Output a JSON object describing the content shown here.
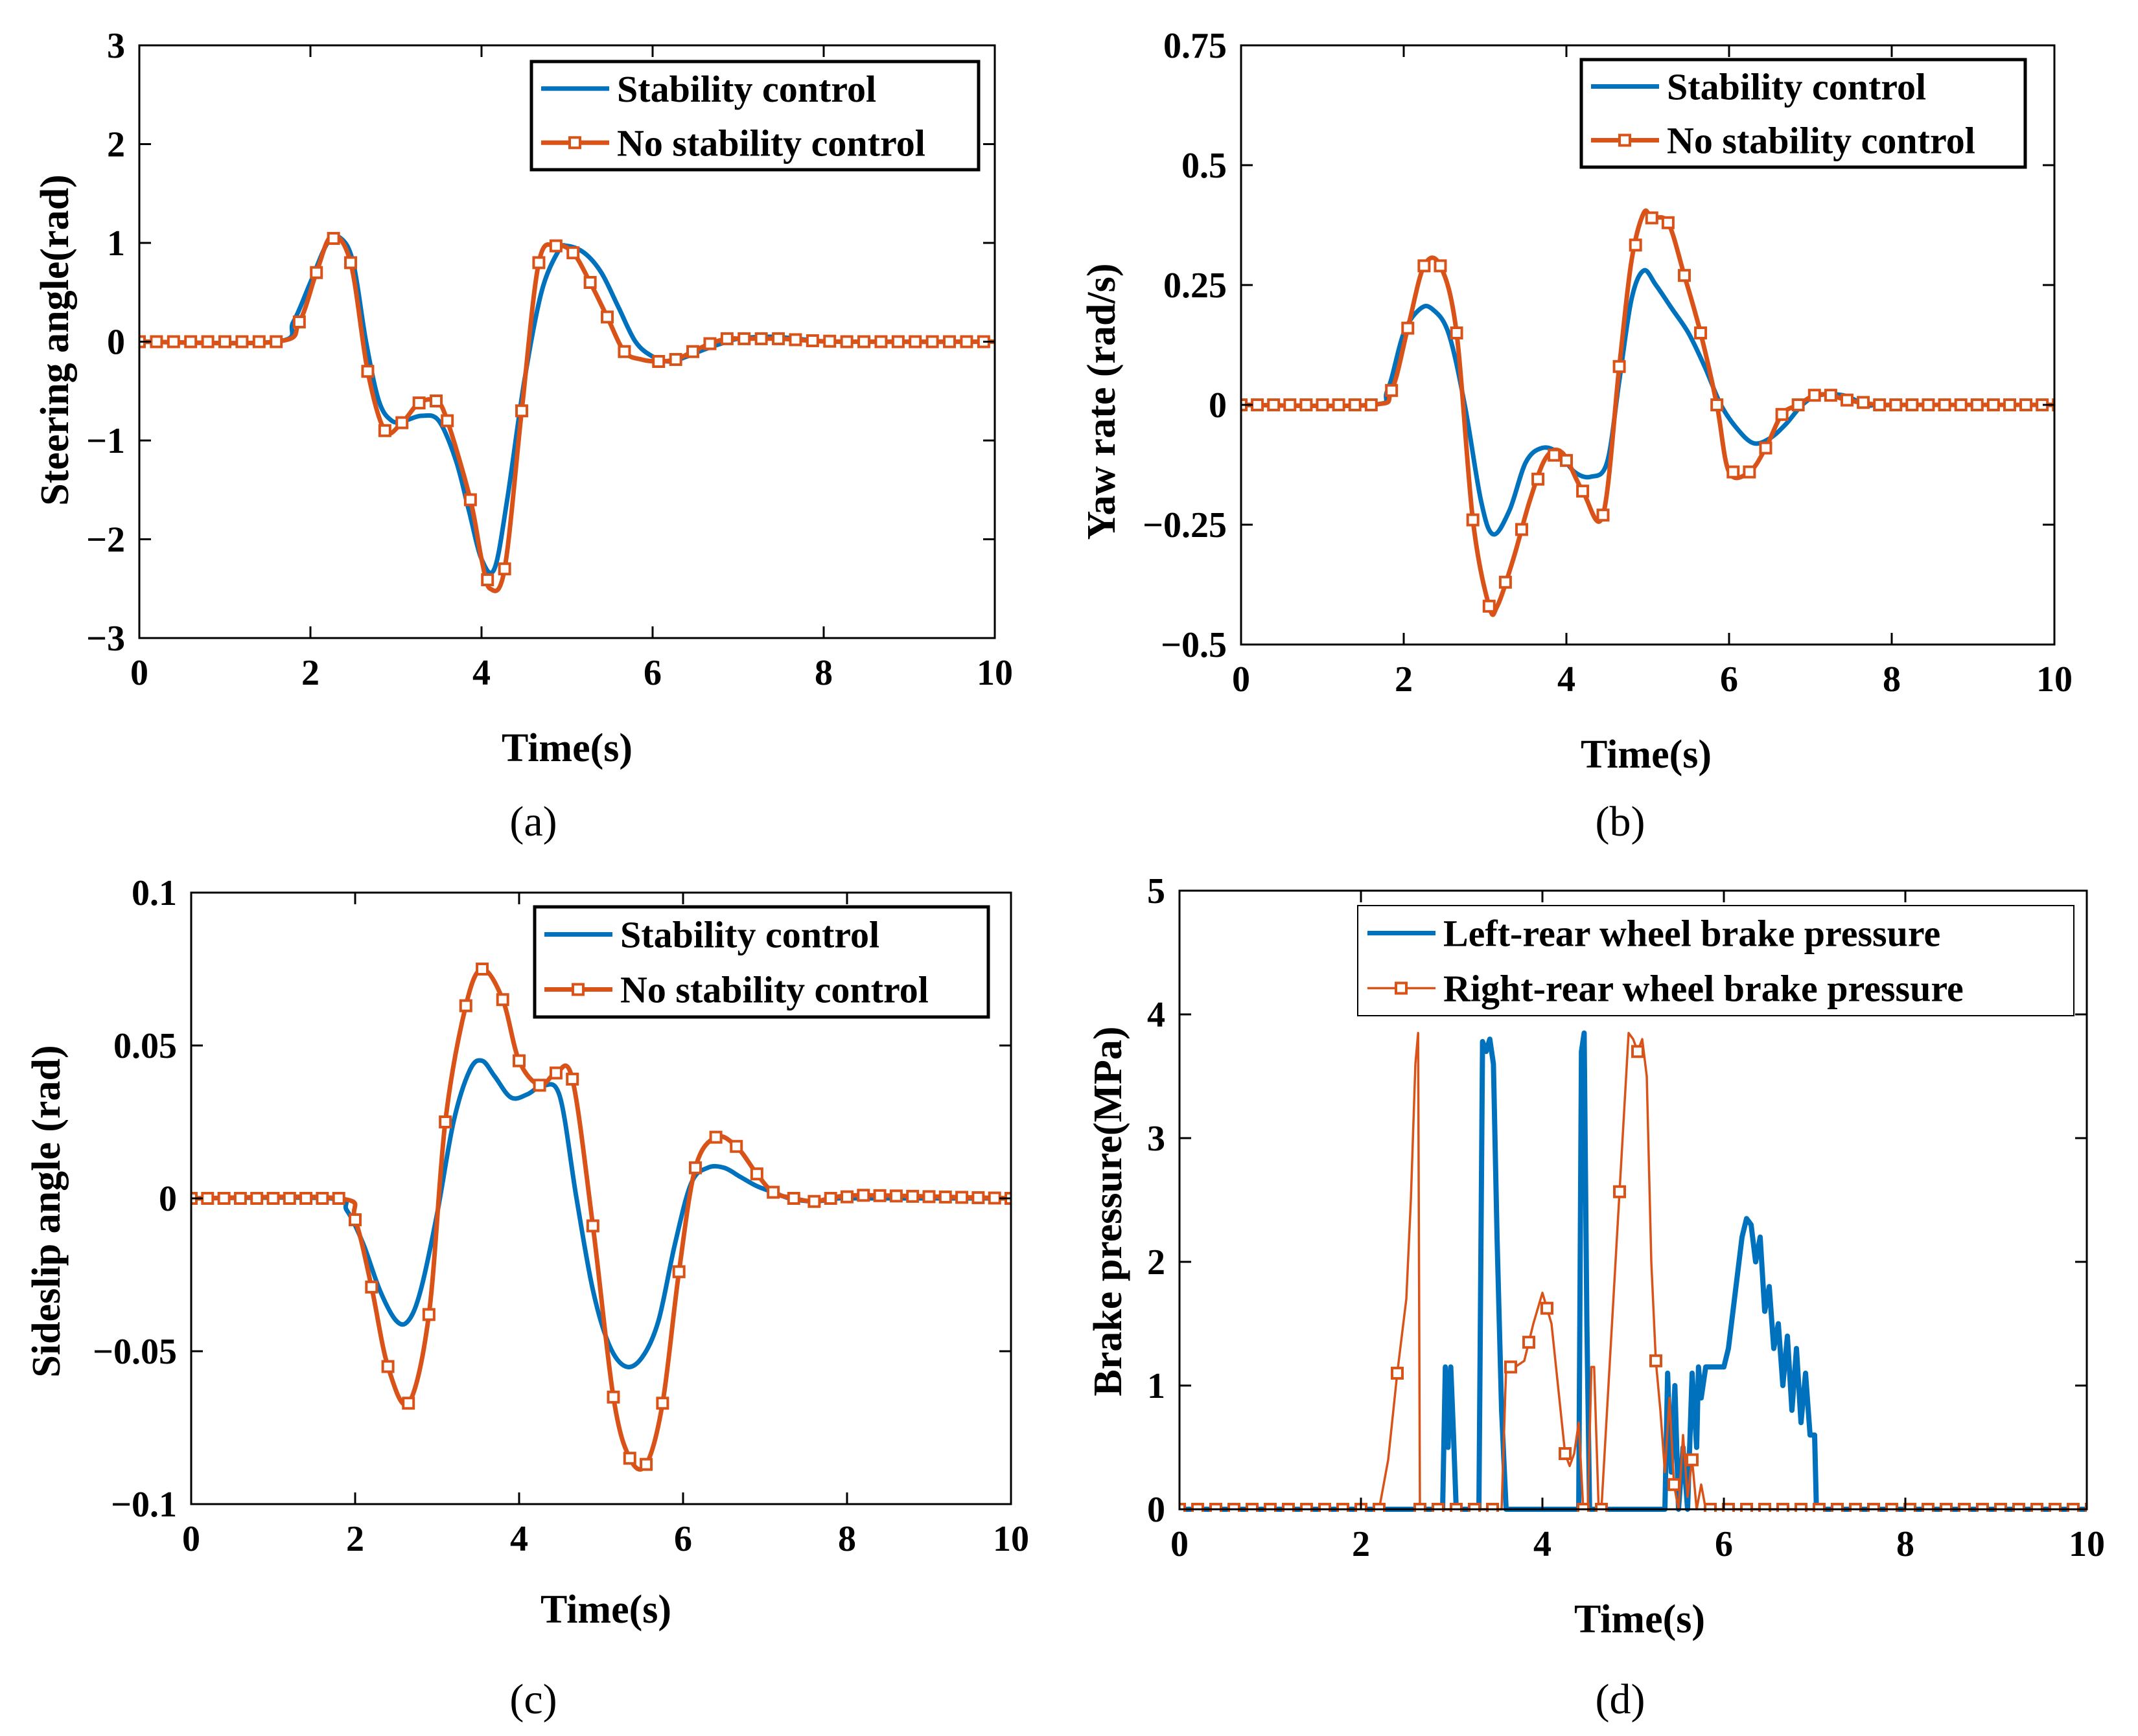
{
  "colors": {
    "stability": "#0072BD",
    "no_stability": "#D95319",
    "axis": "#000000"
  },
  "chart_data": [
    {
      "id": "a",
      "type": "line",
      "panel_label": "(a)",
      "xlabel": "Time(s)",
      "ylabel": "Steering angle(rad)",
      "xlim": [
        0,
        10
      ],
      "ylim": [
        -3,
        3
      ],
      "xticks": [
        0,
        2,
        4,
        6,
        8,
        10
      ],
      "yticks": [
        -3,
        -2,
        -1,
        0,
        1,
        2,
        3
      ],
      "ytick_labels": [
        "−3",
        "−2",
        "−1",
        "0",
        "1",
        "2",
        "3"
      ],
      "legend": [
        "Stability control",
        "No stability control"
      ],
      "series": [
        {
          "name": "Stability control",
          "style": "line",
          "x": [
            0,
            1.6,
            1.8,
            2.0,
            2.2,
            2.35,
            2.5,
            2.65,
            2.8,
            2.95,
            3.1,
            3.3,
            3.5,
            3.7,
            3.85,
            4.0,
            4.15,
            4.3,
            4.5,
            4.7,
            4.9,
            5.0,
            5.2,
            5.4,
            5.6,
            5.8,
            6.0,
            6.2,
            6.4,
            6.6,
            6.8,
            7.0,
            7.4,
            7.8,
            8.2,
            10
          ],
          "y": [
            0,
            0,
            0.2,
            0.6,
            1.0,
            1.05,
            0.8,
            0.0,
            -0.6,
            -0.8,
            -0.8,
            -0.75,
            -0.8,
            -1.2,
            -1.7,
            -2.2,
            -2.3,
            -1.6,
            -0.4,
            0.5,
            0.92,
            0.97,
            0.9,
            0.7,
            0.35,
            0.0,
            -0.15,
            -0.2,
            -0.15,
            -0.08,
            -0.02,
            0.03,
            0.05,
            0.02,
            0,
            0
          ]
        },
        {
          "name": "No stability control",
          "style": "line-square",
          "markers_x": [
            0,
            0.2,
            0.4,
            0.6,
            0.8,
            1.0,
            1.2,
            1.4,
            1.6,
            1.87,
            2.07,
            2.27,
            2.47,
            2.67,
            2.87,
            3.07,
            3.27,
            3.47,
            3.6,
            3.87,
            4.07,
            4.27,
            4.47,
            4.67,
            4.87,
            5.07,
            5.27,
            5.47,
            5.67,
            6.07,
            6.27,
            6.47,
            6.67,
            6.87,
            7.07,
            7.27,
            7.47,
            7.67,
            7.87,
            8.07,
            8.27,
            8.47,
            8.67,
            8.87,
            9.07,
            9.27,
            9.47,
            9.67,
            9.87,
            10.07
          ],
          "x": [
            0,
            1.6,
            1.87,
            2.07,
            2.25,
            2.47,
            2.67,
            2.87,
            3.07,
            3.27,
            3.47,
            3.6,
            3.87,
            4.0,
            4.1,
            4.27,
            4.47,
            4.67,
            4.87,
            5.07,
            5.27,
            5.47,
            5.67,
            5.87,
            6.07,
            6.27,
            6.47,
            6.67,
            6.87,
            7.07,
            7.47,
            7.87,
            8.27,
            10.07
          ],
          "y": [
            0,
            0,
            0.2,
            0.7,
            1.07,
            0.8,
            -0.3,
            -0.9,
            -0.82,
            -0.62,
            -0.6,
            -0.8,
            -1.6,
            -2.2,
            -2.5,
            -2.3,
            -0.7,
            0.8,
            0.97,
            0.9,
            0.6,
            0.25,
            -0.1,
            -0.18,
            -0.2,
            -0.18,
            -0.1,
            -0.02,
            0.03,
            0.03,
            0.03,
            0.01,
            0,
            0
          ]
        }
      ]
    },
    {
      "id": "b",
      "type": "line",
      "panel_label": "(b)",
      "xlabel": "Time(s)",
      "ylabel": "Yaw rate (rad/s)",
      "xlim": [
        0,
        10
      ],
      "ylim": [
        -0.5,
        0.75
      ],
      "xticks": [
        0,
        2,
        4,
        6,
        8,
        10
      ],
      "yticks": [
        -0.5,
        -0.25,
        0,
        0.25,
        0.5,
        0.75
      ],
      "ytick_labels": [
        "−0.5",
        "−0.25",
        "0",
        "0.25",
        "0.5",
        "0.75"
      ],
      "legend": [
        "Stability control",
        "No stability control"
      ],
      "series": [
        {
          "name": "Stability control",
          "style": "line",
          "x": [
            0,
            1.6,
            1.8,
            2.0,
            2.2,
            2.35,
            2.55,
            2.75,
            2.95,
            3.1,
            3.3,
            3.5,
            3.7,
            3.9,
            4.1,
            4.3,
            4.5,
            4.65,
            4.8,
            4.95,
            5.1,
            5.3,
            5.5,
            5.7,
            5.9,
            6.1,
            6.3,
            6.5,
            6.7,
            6.9,
            7.1,
            7.4,
            7.7,
            8.0,
            10
          ],
          "y": [
            0,
            0,
            0.03,
            0.15,
            0.2,
            0.2,
            0.15,
            0.0,
            -0.2,
            -0.27,
            -0.22,
            -0.12,
            -0.09,
            -0.1,
            -0.14,
            -0.15,
            -0.12,
            0.05,
            0.22,
            0.28,
            0.25,
            0.2,
            0.15,
            0.08,
            0.0,
            -0.05,
            -0.08,
            -0.07,
            -0.04,
            0.0,
            0.02,
            0.02,
            0.0,
            0,
            0
          ]
        },
        {
          "name": "No stability control",
          "style": "line-square",
          "markers_x": [
            0,
            0.2,
            0.4,
            0.6,
            0.8,
            1.0,
            1.2,
            1.4,
            1.6,
            1.85,
            2.05,
            2.25,
            2.45,
            2.65,
            2.85,
            3.05,
            3.25,
            3.45,
            3.65,
            3.85,
            4.0,
            4.2,
            4.45,
            4.65,
            4.85,
            5.05,
            5.25,
            5.45,
            5.65,
            5.85,
            6.05,
            6.25,
            6.45,
            6.65,
            6.85,
            7.05,
            7.25,
            7.45,
            7.65,
            7.85,
            8.05,
            8.25,
            8.45,
            8.65,
            8.85,
            9.05,
            9.25,
            9.45,
            9.65,
            9.85,
            10.05
          ],
          "x": [
            0,
            1.6,
            1.85,
            2.05,
            2.25,
            2.45,
            2.65,
            2.85,
            3.05,
            3.15,
            3.35,
            3.55,
            3.75,
            3.95,
            4.2,
            4.45,
            4.65,
            4.8,
            4.95,
            5.05,
            5.25,
            5.45,
            5.65,
            5.85,
            6.0,
            6.25,
            6.45,
            6.65,
            6.85,
            7.05,
            7.25,
            7.45,
            7.85,
            8.25,
            10.05
          ],
          "y": [
            0,
            0,
            0.03,
            0.16,
            0.29,
            0.29,
            0.15,
            -0.24,
            -0.42,
            -0.42,
            -0.32,
            -0.2,
            -0.11,
            -0.1,
            -0.18,
            -0.23,
            0.08,
            0.3,
            0.4,
            0.39,
            0.38,
            0.27,
            0.15,
            0.0,
            -0.14,
            -0.14,
            -0.09,
            -0.02,
            0.0,
            0.02,
            0.02,
            0.01,
            0.0,
            0,
            0
          ]
        }
      ]
    },
    {
      "id": "c",
      "type": "line",
      "panel_label": "(c)",
      "xlabel": "Time(s)",
      "ylabel": "Sideslip angle (rad)",
      "xlim": [
        0,
        10
      ],
      "ylim": [
        -0.1,
        0.1
      ],
      "xticks": [
        0,
        2,
        4,
        6,
        8,
        10
      ],
      "yticks": [
        -0.1,
        -0.05,
        0,
        0.05,
        0.1
      ],
      "ytick_labels": [
        "−0.1",
        "−0.05",
        "0",
        "0.05",
        "0.1"
      ],
      "legend": [
        "Stability control",
        "No stability control"
      ],
      "series": [
        {
          "name": "Stability control",
          "style": "line",
          "x": [
            0,
            1.7,
            1.9,
            2.1,
            2.3,
            2.5,
            2.65,
            2.8,
            3.0,
            3.2,
            3.4,
            3.55,
            3.7,
            3.9,
            4.1,
            4.3,
            4.5,
            4.7,
            4.9,
            5.1,
            5.3,
            5.5,
            5.7,
            5.9,
            6.1,
            6.3,
            6.5,
            6.7,
            6.9,
            7.1,
            7.3,
            7.6,
            7.9,
            8.2,
            10
          ],
          "y": [
            0,
            0,
            -0.004,
            -0.015,
            -0.03,
            -0.04,
            -0.04,
            -0.03,
            -0.005,
            0.025,
            0.042,
            0.045,
            0.04,
            0.033,
            0.034,
            0.037,
            0.033,
            0.0,
            -0.03,
            -0.048,
            -0.055,
            -0.052,
            -0.04,
            -0.015,
            0.005,
            0.01,
            0.01,
            0.007,
            0.004,
            0.002,
            0.0,
            -0.001,
            0.0,
            0,
            0
          ]
        },
        {
          "name": "No stability control",
          "style": "line-square",
          "markers_x": [
            0,
            0.2,
            0.4,
            0.6,
            0.8,
            1.0,
            1.2,
            1.4,
            1.6,
            1.8,
            2.0,
            2.2,
            2.4,
            2.65,
            2.9,
            3.1,
            3.35,
            3.55,
            3.8,
            4.0,
            4.25,
            4.45,
            4.65,
            4.9,
            5.15,
            5.35,
            5.55,
            5.75,
            5.95,
            6.15,
            6.4,
            6.65,
            6.9,
            7.1,
            7.35,
            7.6,
            7.8,
            8.0,
            8.2,
            8.4,
            8.6,
            8.8,
            9.0,
            9.2,
            9.4,
            9.6,
            9.8,
            10.0
          ],
          "x": [
            0,
            1.8,
            2.0,
            2.2,
            2.4,
            2.65,
            2.9,
            3.1,
            3.35,
            3.55,
            3.8,
            4.0,
            4.25,
            4.45,
            4.65,
            4.9,
            5.15,
            5.35,
            5.55,
            5.75,
            5.95,
            6.15,
            6.4,
            6.65,
            6.9,
            7.1,
            7.35,
            7.6,
            7.8,
            8.2,
            10.0
          ],
          "y": [
            0,
            0,
            -0.007,
            -0.029,
            -0.055,
            -0.067,
            -0.038,
            0.025,
            0.063,
            0.075,
            0.065,
            0.045,
            0.037,
            0.041,
            0.039,
            -0.009,
            -0.065,
            -0.085,
            -0.087,
            -0.067,
            -0.024,
            0.01,
            0.02,
            0.017,
            0.008,
            0.002,
            0.0,
            -0.001,
            0.0,
            0.001,
            0.0
          ]
        }
      ]
    },
    {
      "id": "d",
      "type": "line",
      "panel_label": "(d)",
      "xlabel": "Time(s)",
      "ylabel": "Brake pressure(MPa)",
      "xlim": [
        0,
        10
      ],
      "ylim": [
        0,
        5
      ],
      "xticks": [
        0,
        2,
        4,
        6,
        8,
        10
      ],
      "yticks": [
        0,
        1,
        2,
        3,
        4,
        5
      ],
      "ytick_labels": [
        "0",
        "1",
        "2",
        "3",
        "4",
        "5"
      ],
      "legend": [
        "Left-rear wheel brake pressure",
        "Right-rear wheel brake pressure"
      ],
      "series": [
        {
          "name": "Left-rear wheel brake pressure",
          "style": "line-thick",
          "x": [
            0,
            2.9,
            2.93,
            2.96,
            2.99,
            3.02,
            3.05,
            3.3,
            3.34,
            3.38,
            3.42,
            3.46,
            3.5,
            3.55,
            3.6,
            4.4,
            4.43,
            4.46,
            4.49,
            4.52,
            5.35,
            5.38,
            5.42,
            5.46,
            5.5,
            5.55,
            5.6,
            5.65,
            5.7,
            5.72,
            5.75,
            5.8,
            5.85,
            5.9,
            5.95,
            6.0,
            6.05,
            6.1,
            6.15,
            6.2,
            6.25,
            6.3,
            6.35,
            6.4,
            6.45,
            6.5,
            6.55,
            6.6,
            6.65,
            6.7,
            6.75,
            6.8,
            6.85,
            6.9,
            6.95,
            7.0,
            7.02,
            10
          ],
          "y": [
            0,
            0,
            1.15,
            0.5,
            1.15,
            0.6,
            0,
            0,
            3.78,
            3.7,
            3.8,
            3.6,
            2.2,
            0.8,
            0,
            0,
            3.7,
            3.85,
            1.5,
            0,
            0,
            1.1,
            0.3,
            1.0,
            0,
            0.5,
            0,
            1.1,
            0.5,
            1.15,
            0.9,
            1.15,
            1.15,
            1.15,
            1.15,
            1.15,
            1.3,
            1.6,
            1.9,
            2.2,
            2.35,
            2.3,
            2.0,
            2.2,
            1.6,
            1.8,
            1.3,
            1.5,
            1.0,
            1.4,
            0.8,
            1.3,
            0.7,
            1.1,
            0.6,
            0.6,
            0,
            0
          ]
        },
        {
          "name": "Right-rear wheel brake pressure",
          "style": "thin-square",
          "markers_x": [
            0,
            0.2,
            0.4,
            0.6,
            0.8,
            1.0,
            1.2,
            1.4,
            1.6,
            1.8,
            2.0,
            2.2,
            2.4,
            2.65,
            2.85,
            3.05,
            3.25,
            3.45,
            3.65,
            3.85,
            4.05,
            4.25,
            4.45,
            4.65,
            4.85,
            5.05,
            5.25,
            5.45,
            5.65,
            5.85,
            6.05,
            6.25,
            6.45,
            6.65,
            6.85,
            7.05,
            7.25,
            7.45,
            7.65,
            7.85,
            8.05,
            8.25,
            8.45,
            8.65,
            8.85,
            9.05,
            9.25,
            9.45,
            9.65,
            9.85,
            10.05
          ],
          "x": [
            0,
            2.2,
            2.3,
            2.4,
            2.5,
            2.55,
            2.6,
            2.63,
            2.65,
            3.55,
            3.6,
            3.7,
            3.8,
            3.9,
            4.0,
            4.1,
            4.2,
            4.25,
            4.3,
            4.35,
            4.4,
            4.45,
            4.5,
            4.54,
            4.57,
            4.62,
            4.65,
            4.95,
            5.0,
            5.05,
            5.1,
            5.15,
            5.2,
            5.25,
            5.3,
            5.35,
            5.4,
            5.45,
            5.5,
            5.55,
            5.6,
            5.65,
            5.7,
            5.75,
            5.8,
            5.85,
            10.05
          ],
          "y": [
            0,
            0,
            0.4,
            1.1,
            1.7,
            2.5,
            3.6,
            3.85,
            0,
            0,
            1.15,
            1.15,
            1.2,
            1.5,
            1.75,
            1.5,
            0.8,
            0.45,
            0.35,
            0.45,
            0.7,
            0.0,
            0.0,
            1.15,
            1.15,
            0,
            0,
            3.85,
            3.8,
            3.7,
            3.8,
            3.5,
            2.0,
            1.2,
            0.8,
            0.3,
            0.9,
            0.2,
            0,
            0.6,
            0.1,
            0.4,
            0,
            0.2,
            0,
            0,
            0
          ]
        }
      ]
    }
  ]
}
